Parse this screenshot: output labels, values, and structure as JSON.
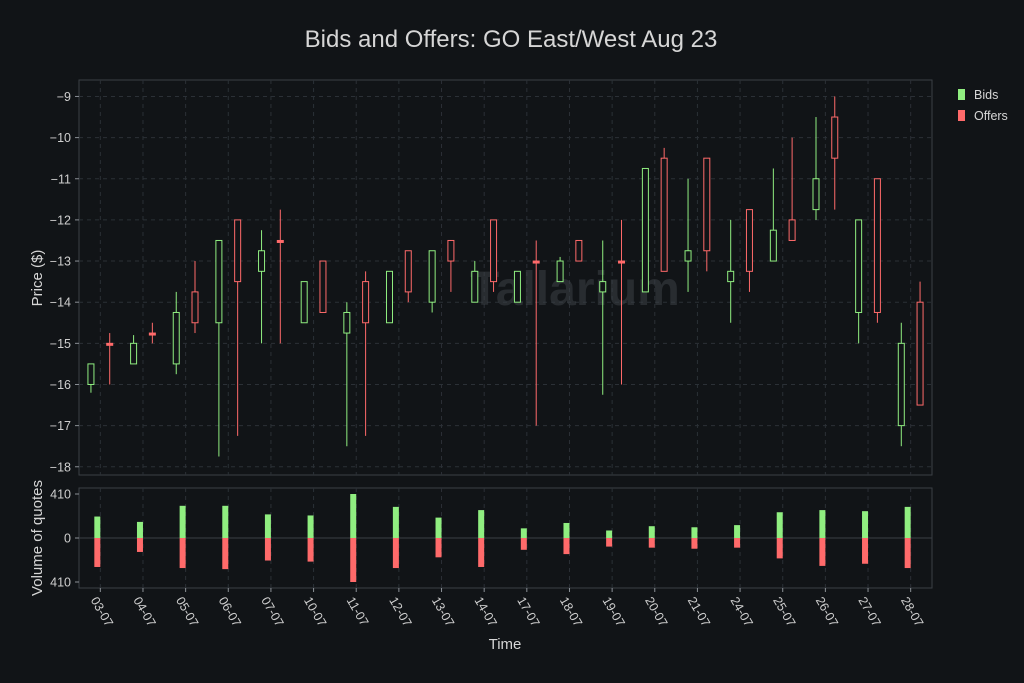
{
  "chart_data": {
    "type": "candlestick",
    "title": "Bids and Offers: GO East/West Aug 23",
    "xlabel": "Time",
    "ylabel_price": "Price ($)",
    "ylabel_volume": "Volume of quotes",
    "price_ylim": [
      -18.2,
      -8.6
    ],
    "price_yticks": [
      -9,
      -10,
      -11,
      -12,
      -13,
      -14,
      -15,
      -16,
      -17,
      -18
    ],
    "volume_ylim": [
      -410,
      410
    ],
    "volume_yticks": [
      "410",
      "0",
      "410"
    ],
    "legend_position": "top-right",
    "watermark": "Tallarium",
    "colors": {
      "bids": "#90ee80",
      "offers": "#ff6a6a",
      "background": "#111417"
    },
    "dates": [
      "03-07",
      "04-07",
      "05-07",
      "06-07",
      "07-07",
      "10-07",
      "11-07",
      "12-07",
      "13-07",
      "14-07",
      "17-07",
      "18-07",
      "19-07",
      "20-07",
      "21-07",
      "24-07",
      "25-07",
      "26-07",
      "27-07",
      "28-07"
    ],
    "series": [
      {
        "name": "Bids",
        "color": "#90ee80",
        "ohlc": [
          [
            -16.0,
            -15.5,
            -16.2,
            -15.5
          ],
          [
            -15.5,
            -15.0,
            -15.5,
            -14.8
          ],
          [
            -15.5,
            -14.25,
            -15.75,
            -13.75
          ],
          [
            -14.5,
            -12.5,
            -17.75,
            -12.5
          ],
          [
            -13.25,
            -12.75,
            -15.0,
            -12.25
          ],
          [
            -14.5,
            -13.5,
            -14.5,
            -13.5
          ],
          [
            -14.75,
            -14.25,
            -17.5,
            -14.0
          ],
          [
            -14.5,
            -13.25,
            -14.5,
            -13.25
          ],
          [
            -14.0,
            -12.75,
            -14.25,
            -12.75
          ],
          [
            -14.0,
            -13.25,
            -14.0,
            -13.0
          ],
          [
            -14.0,
            -13.25,
            -14.0,
            -13.25
          ],
          [
            -13.5,
            -13.0,
            -13.5,
            -12.9
          ],
          [
            -13.75,
            -13.5,
            -16.25,
            -12.5
          ],
          [
            -13.75,
            -10.75,
            -13.75,
            -10.75
          ],
          [
            -13.0,
            -12.75,
            -13.75,
            -11.0
          ],
          [
            -13.5,
            -13.25,
            -14.5,
            -12.0
          ],
          [
            -13.0,
            -12.25,
            -13.0,
            -10.75
          ],
          [
            -11.75,
            -11.0,
            -12.0,
            -9.5
          ],
          [
            -14.25,
            -12.0,
            -15.0,
            -12.0
          ],
          [
            -17.0,
            -15.0,
            -17.5,
            -14.5
          ]
        ],
        "volume": [
          200,
          150,
          300,
          300,
          220,
          210,
          410,
          290,
          190,
          260,
          90,
          140,
          70,
          110,
          100,
          120,
          240,
          260,
          250,
          290
        ]
      },
      {
        "name": "Offers",
        "color": "#ff6a6a",
        "ohlc": [
          [
            -15.0,
            -15.0,
            -16.0,
            -14.75
          ],
          [
            -14.75,
            -14.75,
            -15.0,
            -14.5
          ],
          [
            -14.5,
            -13.75,
            -14.75,
            -13.0
          ],
          [
            -13.5,
            -12.0,
            -17.25,
            -12.0
          ],
          [
            -12.5,
            -12.5,
            -15.0,
            -11.75
          ],
          [
            -14.25,
            -13.0,
            -14.25,
            -13.0
          ],
          [
            -14.5,
            -13.5,
            -17.25,
            -13.25
          ],
          [
            -13.75,
            -12.75,
            -14.0,
            -12.75
          ],
          [
            -13.0,
            -12.5,
            -13.75,
            -12.5
          ],
          [
            -13.5,
            -12.0,
            -13.75,
            -12.0
          ],
          [
            -13.0,
            -13.0,
            -17.0,
            -12.5
          ],
          [
            -13.0,
            -12.5,
            -13.0,
            -12.5
          ],
          [
            -13.0,
            -13.0,
            -16.0,
            -12.0
          ],
          [
            -13.25,
            -10.5,
            -13.25,
            -10.25
          ],
          [
            -12.75,
            -10.5,
            -13.25,
            -10.5
          ],
          [
            -13.25,
            -11.75,
            -13.75,
            -11.75
          ],
          [
            -12.5,
            -12.0,
            -12.5,
            -10.0
          ],
          [
            -10.5,
            -9.5,
            -11.75,
            -9.0
          ],
          [
            -14.25,
            -11.0,
            -14.5,
            -11.0
          ],
          [
            -16.5,
            -14.0,
            -16.5,
            -13.5
          ]
        ],
        "volume": [
          270,
          130,
          280,
          290,
          210,
          220,
          410,
          280,
          180,
          270,
          110,
          150,
          80,
          90,
          100,
          90,
          190,
          260,
          240,
          280
        ]
      }
    ]
  }
}
